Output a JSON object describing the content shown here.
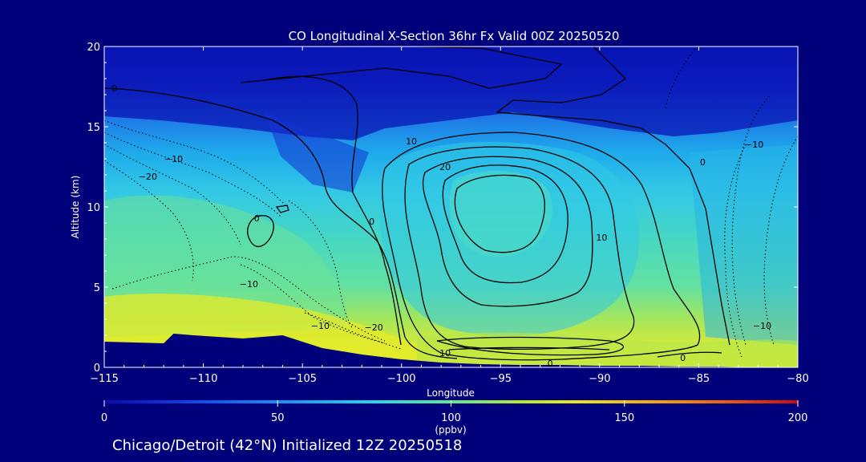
{
  "chart_data": {
    "type": "heatmap",
    "title": "CO Longitudinal X-Section 36hr  Fx Valid 00Z 20250520",
    "xlabel": "Longitude",
    "ylabel": "Altitude (km)",
    "xlim": [
      -115,
      -80
    ],
    "ylim": [
      0,
      20
    ],
    "x_ticks": [
      -115,
      -110,
      -105,
      -100,
      -95,
      -90,
      -85,
      -80
    ],
    "x_tick_labels": [
      "−115",
      "−110",
      "−105",
      "−100",
      "−95",
      "−90",
      "−85",
      "−80"
    ],
    "y_ticks": [
      0,
      5,
      10,
      15,
      20
    ],
    "y_tick_labels": [
      "0",
      "5",
      "10",
      "15",
      "20"
    ],
    "grid": false,
    "colorbar": {
      "min": 0,
      "max": 200,
      "ticks": [
        0,
        50,
        100,
        150,
        200
      ],
      "tick_labels": [
        "0",
        "50",
        "100",
        "150",
        "200"
      ],
      "label": "(ppbv)",
      "colors": [
        "#0a0aa8",
        "#1450e6",
        "#1e9bf0",
        "#28d2e6",
        "#46e6a5",
        "#a5eb3c",
        "#e6e61e",
        "#f5a514",
        "#eb5a0a",
        "#c80a0a"
      ]
    },
    "terrain": {
      "x": [
        -115,
        -112,
        -111.5,
        -110.5,
        -108,
        -106,
        -104,
        -102,
        -100,
        -98,
        -96,
        -94,
        -92,
        -90,
        -88,
        -86,
        -84,
        -82,
        -80
      ],
      "y": [
        1.6,
        1.5,
        2.1,
        2.0,
        1.8,
        2.0,
        1.2,
        0.8,
        0.5,
        0.3,
        0.2,
        0.15,
        0.15,
        0.1,
        0.1,
        0.05,
        0.05,
        0.0,
        0.0
      ]
    },
    "contours": [
      {
        "label": "0",
        "style": "solid",
        "lon": -114.5,
        "alt": 17.4
      },
      {
        "label": "10",
        "style": "solid",
        "lon": -99.5,
        "alt": 14.1
      },
      {
        "label": "20",
        "style": "solid",
        "lon": -97.8,
        "alt": 12.5
      },
      {
        "label": "10",
        "style": "solid",
        "lon": -89.9,
        "alt": 8.1
      },
      {
        "label": "0",
        "style": "solid",
        "lon": -84.8,
        "alt": 12.8
      },
      {
        "label": "0",
        "style": "solid",
        "lon": -101.5,
        "alt": 9.1
      },
      {
        "label": "10",
        "style": "solid",
        "lon": -97.8,
        "alt": 0.9
      },
      {
        "label": "0",
        "style": "solid",
        "lon": -92.5,
        "alt": 0.25
      },
      {
        "label": "0",
        "style": "solid",
        "lon": -85.8,
        "alt": 0.6
      },
      {
        "label": "0",
        "style": "solid",
        "lon": -107.3,
        "alt": 9.3
      },
      {
        "label": "−10",
        "style": "dotted",
        "lon": -111.5,
        "alt": 13.0
      },
      {
        "label": "−20",
        "style": "dotted",
        "lon": -112.8,
        "alt": 11.9
      },
      {
        "label": "−10",
        "style": "dotted",
        "lon": -107.7,
        "alt": 5.2
      },
      {
        "label": "−10",
        "style": "dotted",
        "lon": -104.1,
        "alt": 2.6
      },
      {
        "label": "−20",
        "style": "dotted",
        "lon": -101.4,
        "alt": 2.5
      },
      {
        "label": "−10",
        "style": "dotted",
        "lon": -82.2,
        "alt": 13.9
      },
      {
        "label": "−10",
        "style": "dotted",
        "lon": -81.8,
        "alt": 2.6
      }
    ]
  },
  "footer": {
    "caption": "Chicago/Detroit (42°N) Initialized 12Z 20250518"
  }
}
